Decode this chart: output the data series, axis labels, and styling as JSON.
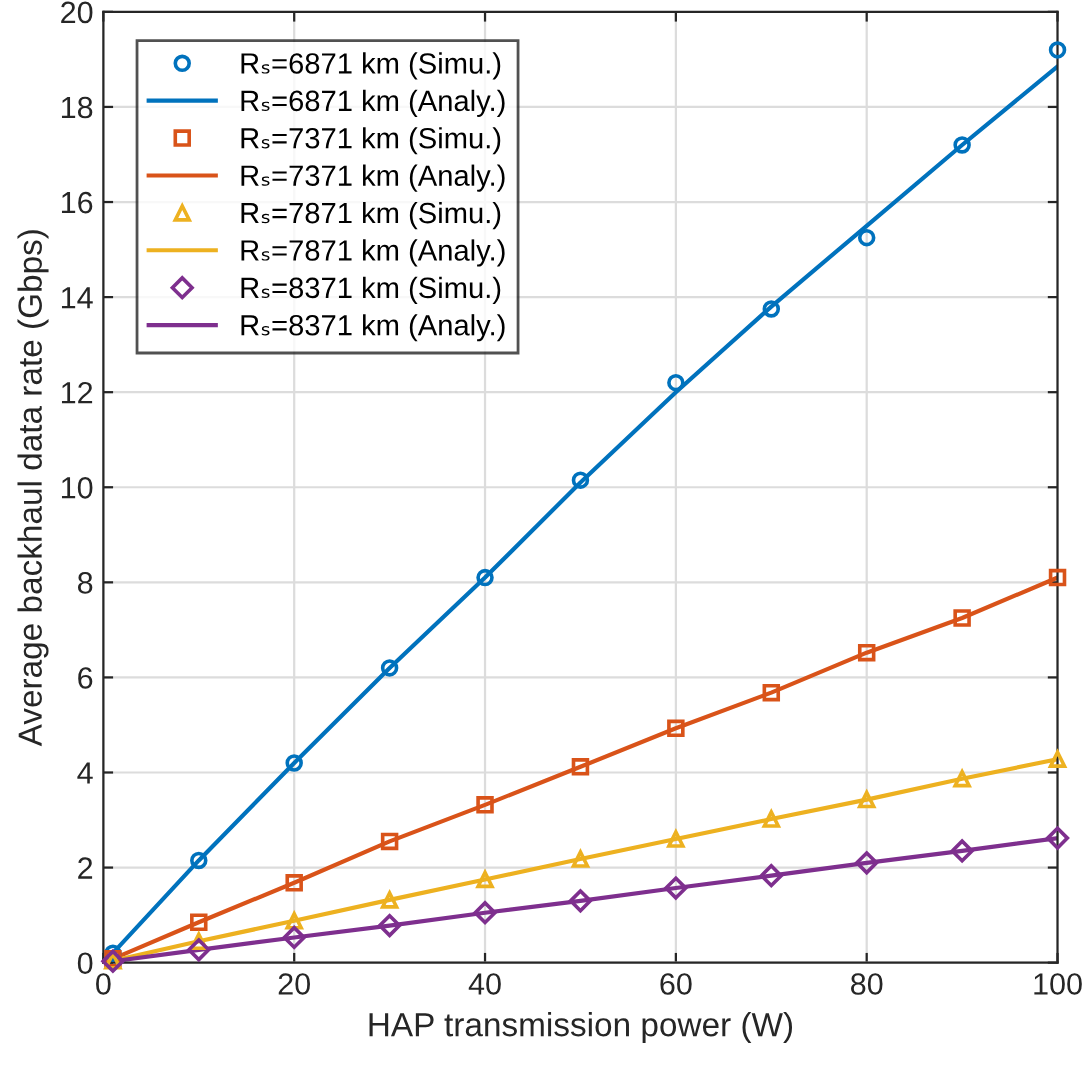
{
  "chart_data": {
    "type": "line",
    "xlabel": "HAP transmission power (W)",
    "ylabel": "Average backhaul data rate (Gbps)",
    "x": [
      1,
      10,
      20,
      30,
      40,
      50,
      60,
      70,
      80,
      90,
      100
    ],
    "xlim": [
      0,
      100
    ],
    "xticks": [
      0,
      20,
      40,
      60,
      80,
      100
    ],
    "ylim": [
      0,
      20
    ],
    "yticks": [
      0,
      2,
      4,
      6,
      8,
      10,
      12,
      14,
      16,
      18,
      20
    ],
    "grid": true,
    "legend": "top left",
    "series": [
      {
        "name": "Rₛ=6871 km (Simu.)",
        "type": "scatter",
        "marker": "circle",
        "color": "#0072bd",
        "values": [
          0.2,
          2.15,
          4.2,
          6.2,
          8.1,
          10.15,
          12.2,
          13.75,
          15.25,
          17.2,
          19.2
        ]
      },
      {
        "name": "Rₛ=6871 km (Analy.)",
        "marker": "none",
        "color": "#0072bd",
        "values": [
          0.2,
          2.15,
          4.2,
          6.2,
          8.1,
          10.1,
          12.0,
          13.8,
          15.5,
          17.2,
          18.85
        ]
      },
      {
        "name": "Rₛ=7371 km (Simu.)",
        "type": "scatter",
        "marker": "square",
        "color": "#d95319",
        "values": [
          0.08,
          0.85,
          1.68,
          2.55,
          3.32,
          4.12,
          4.93,
          5.68,
          6.52,
          7.25,
          8.1
        ]
      },
      {
        "name": "Rₛ=7371 km (Analy.)",
        "marker": "none",
        "color": "#d95319",
        "values": [
          0.08,
          0.85,
          1.68,
          2.55,
          3.32,
          4.12,
          4.93,
          5.68,
          6.52,
          7.25,
          8.1
        ]
      },
      {
        "name": "Rₛ=7871 km (Simu.)",
        "type": "scatter",
        "marker": "triangle",
        "color": "#edb120",
        "values": [
          0.04,
          0.45,
          0.88,
          1.32,
          1.75,
          2.18,
          2.6,
          3.02,
          3.43,
          3.87,
          4.28
        ]
      },
      {
        "name": "Rₛ=7871 km (Analy.)",
        "marker": "none",
        "color": "#edb120",
        "values": [
          0.04,
          0.45,
          0.88,
          1.32,
          1.75,
          2.18,
          2.6,
          3.02,
          3.43,
          3.87,
          4.28
        ]
      },
      {
        "name": "Rₛ=8371 km (Simu.)",
        "type": "scatter",
        "marker": "diamond",
        "color": "#7e2f8e",
        "values": [
          0.03,
          0.27,
          0.53,
          0.78,
          1.05,
          1.3,
          1.57,
          1.83,
          2.1,
          2.35,
          2.62
        ]
      },
      {
        "name": "Rₛ=8371 km (Analy.)",
        "marker": "none",
        "color": "#7e2f8e",
        "values": [
          0.03,
          0.27,
          0.53,
          0.78,
          1.05,
          1.3,
          1.57,
          1.83,
          2.1,
          2.35,
          2.62
        ]
      }
    ]
  }
}
